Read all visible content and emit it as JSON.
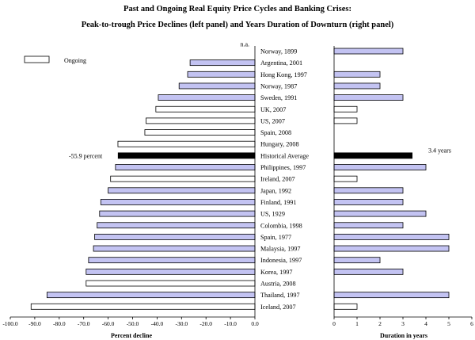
{
  "chart_data": {
    "type": "bar",
    "title": "Past and Ongoing Real Equity Price Cycles and Banking Crises:",
    "subtitle": "Peak-to-trough Price Declines (left panel) and Years Duration of Downturn (right panel)",
    "legend": {
      "label": "Ongoing",
      "position": "top-left"
    },
    "colors": {
      "past": "#c3c3f2",
      "ongoing": "#ffffff",
      "average": "#000000",
      "edge": "#000000"
    },
    "categories": [
      {
        "label": "Norway, 1899",
        "decline": null,
        "duration": 3,
        "status": "past"
      },
      {
        "label": "Argentina, 2001",
        "decline": -26.5,
        "duration": null,
        "status": "past"
      },
      {
        "label": "Hong Kong, 1997",
        "decline": -27.5,
        "duration": 2,
        "status": "past"
      },
      {
        "label": "Norway, 1987",
        "decline": -31.0,
        "duration": 2,
        "status": "past"
      },
      {
        "label": "Sweden, 1991",
        "decline": -39.5,
        "duration": 3,
        "status": "past"
      },
      {
        "label": "UK, 2007",
        "decline": -40.5,
        "duration": 1,
        "status": "ongoing"
      },
      {
        "label": "US, 2007",
        "decline": -44.5,
        "duration": 1,
        "status": "ongoing"
      },
      {
        "label": "Spain, 2008",
        "decline": -45.0,
        "duration": null,
        "status": "ongoing"
      },
      {
        "label": "Hungary, 2008",
        "decline": -56.0,
        "duration": null,
        "status": "ongoing"
      },
      {
        "label": "Historical Average",
        "decline": -55.9,
        "duration": 3.4,
        "status": "average"
      },
      {
        "label": "Philippines, 1997",
        "decline": -57.0,
        "duration": 4,
        "status": "past"
      },
      {
        "label": "Ireland, 2007",
        "decline": -59.0,
        "duration": 1,
        "status": "ongoing"
      },
      {
        "label": "Japan, 1992",
        "decline": -60.0,
        "duration": 3,
        "status": "past"
      },
      {
        "label": "Finland, 1991",
        "decline": -63.0,
        "duration": 3,
        "status": "past"
      },
      {
        "label": "US, 1929",
        "decline": -63.5,
        "duration": 4,
        "status": "past"
      },
      {
        "label": "Colombia, 1998",
        "decline": -64.5,
        "duration": 3,
        "status": "past"
      },
      {
        "label": "Spain, 1977",
        "decline": -65.5,
        "duration": 5,
        "status": "past"
      },
      {
        "label": "Malaysia, 1997",
        "decline": -66.0,
        "duration": 5,
        "status": "past"
      },
      {
        "label": "Indonesia, 1997",
        "decline": -68.0,
        "duration": 2,
        "status": "past"
      },
      {
        "label": "Korea, 1997",
        "decline": -69.0,
        "duration": 3,
        "status": "past"
      },
      {
        "label": "Austria, 2008",
        "decline": -69.0,
        "duration": null,
        "status": "ongoing"
      },
      {
        "label": "Thailand, 1997",
        "decline": -85.0,
        "duration": 5,
        "status": "past"
      },
      {
        "label": "Iceland, 2007",
        "decline": -91.5,
        "duration": 1,
        "status": "ongoing"
      }
    ],
    "left_panel": {
      "xlabel": "Percent decline",
      "xlim": [
        -100,
        0
      ],
      "ticks": [
        -100,
        -90,
        -80,
        -70,
        -60,
        -50,
        -40,
        -30,
        -20,
        -10,
        0
      ],
      "tick_labels": [
        "-100.0",
        "-90.0",
        "-80.0",
        "-70.0",
        "-60.0",
        "-50.0",
        "-40.0",
        "-30.0",
        "-20.0",
        "-10.0",
        "0.0"
      ],
      "missing_label": "n.a.",
      "average_label": "-55.9 percent"
    },
    "right_panel": {
      "xlabel": "Duration in years",
      "xlim": [
        0,
        6
      ],
      "ticks": [
        0,
        1,
        2,
        3,
        4,
        5,
        6
      ],
      "tick_labels": [
        "0",
        "1",
        "2",
        "3",
        "4",
        "5",
        "6"
      ],
      "average_label": "3.4 years"
    },
    "grid": false
  }
}
